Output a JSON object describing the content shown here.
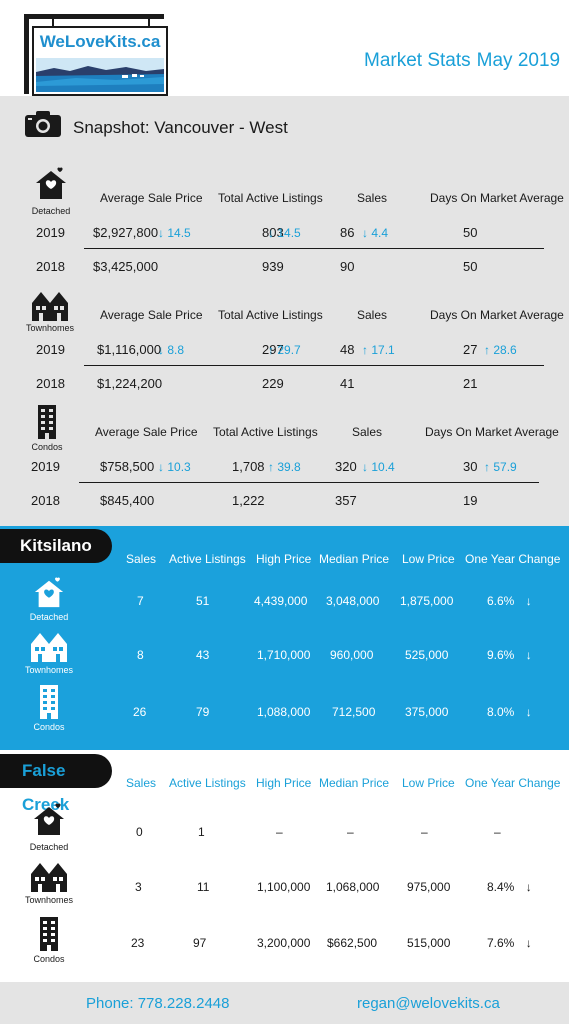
{
  "header": {
    "logo_text": "WeLoveKits.ca",
    "title": "Market Stats",
    "date": "May 2019"
  },
  "snapshot": {
    "title": "Snapshot: Vancouver - West",
    "columns": [
      "Average Sale Price",
      "Total Active Listings",
      "Sales",
      "Days On Market Average"
    ],
    "groups": [
      {
        "type": "Detached",
        "icon": "house-heart-icon",
        "rows": [
          {
            "year": "2019",
            "avg_price": "$2,927,800",
            "avg_change": "14.5",
            "avg_dir": "down",
            "listings": "803",
            "listings_change": "14.5",
            "listings_dir": "down",
            "sales": "86",
            "sales_change": "4.4",
            "sales_dir": "down",
            "dom": "50",
            "dom_change": "",
            "dom_dir": ""
          },
          {
            "year": "2018",
            "avg_price": "$3,425,000",
            "listings": "939",
            "sales": "90",
            "dom": "50"
          }
        ]
      },
      {
        "type": "Townhomes",
        "icon": "townhouse-icon",
        "rows": [
          {
            "year": "2019",
            "avg_price": "$1,116,000",
            "avg_change": "8.8",
            "avg_dir": "down",
            "listings": "297",
            "listings_change": "29.7",
            "listings_dir": "up",
            "sales": "48",
            "sales_change": "17.1",
            "sales_dir": "up",
            "dom": "27",
            "dom_change": "28.6",
            "dom_dir": "up"
          },
          {
            "year": "2018",
            "avg_price": "$1,224,200",
            "listings": "229",
            "sales": "41",
            "dom": "21"
          }
        ]
      },
      {
        "type": "Condos",
        "icon": "condo-building-icon",
        "rows": [
          {
            "year": "2019",
            "avg_price": "$758,500",
            "avg_change": "10.3",
            "avg_dir": "down",
            "listings": "1,708",
            "listings_change": "39.8",
            "listings_dir": "up",
            "sales": "320",
            "sales_change": "10.4",
            "sales_dir": "down",
            "dom": "30",
            "dom_change": "57.9",
            "dom_dir": "up"
          },
          {
            "year": "2018",
            "avg_price": "$845,400",
            "listings": "1,222",
            "sales": "357",
            "dom": "19"
          }
        ]
      }
    ]
  },
  "kitsilano": {
    "name": "Kitsilano",
    "columns": [
      "Sales",
      "Active Listings",
      "High Price",
      "Median Price",
      "Low Price",
      "One Year Change"
    ],
    "rows": [
      {
        "type": "Detached",
        "sales": "7",
        "listings": "51",
        "high": "4,439,000",
        "median": "3,048,000",
        "low": "1,875,000",
        "change": "6.6%",
        "dir": "down"
      },
      {
        "type": "Townhomes",
        "sales": "8",
        "listings": "43",
        "high": "1,710,000",
        "median": "960,000",
        "low": "525,000",
        "change": "9.6%",
        "dir": "down"
      },
      {
        "type": "Condos",
        "sales": "26",
        "listings": "79",
        "high": "1,088,000",
        "median": "712,500",
        "low": "375,000",
        "change": "8.0%",
        "dir": "down"
      }
    ]
  },
  "false_creek": {
    "name": "False Creek",
    "columns": [
      "Sales",
      "Active Listings",
      "High Price",
      "Median Price",
      "Low Price",
      "One Year Change"
    ],
    "rows": [
      {
        "type": "Detached",
        "sales": "0",
        "listings": "1",
        "high": "–",
        "median": "–",
        "low": "–",
        "change": "–",
        "dir": ""
      },
      {
        "type": "Townhomes",
        "sales": "3",
        "listings": "11",
        "high": "1,100,000",
        "median": "1,068,000",
        "low": "975,000",
        "change": "8.4%",
        "dir": "down"
      },
      {
        "type": "Condos",
        "sales": "23",
        "listings": "97",
        "high": "3,200,000",
        "median": "$662,500",
        "low": "515,000",
        "change": "7.6%",
        "dir": "down"
      }
    ]
  },
  "footer": {
    "phone": "Phone: 778.228.2448",
    "email": "regan@welovekits.ca"
  },
  "colors": {
    "accent": "#1aa0d8",
    "kits_band": "#1ba1dc",
    "snapshot_bg": "#e4e4e4",
    "dark": "#111111"
  }
}
